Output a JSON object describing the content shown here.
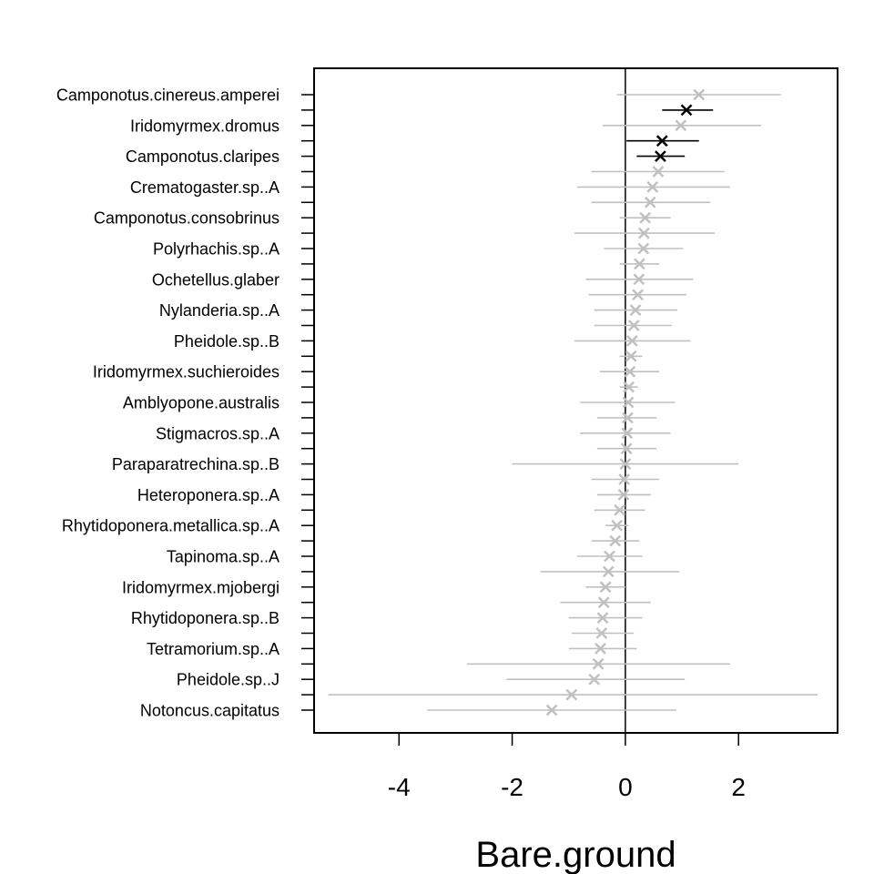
{
  "chart_data": {
    "type": "scatter",
    "subtype": "coefficient-plot-with-intervals",
    "title": "",
    "xlabel": "Bare.ground",
    "ylabel": "",
    "xlim": [
      -5.5,
      3.75
    ],
    "xticks": [
      -4,
      -2,
      0,
      2
    ],
    "zero_line": 0,
    "grid": false,
    "marker": "x",
    "colors": {
      "significant": "#000000",
      "nonsignificant": "#c0c0c0"
    },
    "tick_labels_every": 2,
    "species": [
      {
        "name": "Camponotus.cinereus.amperei",
        "est": 1.3,
        "lo": -0.15,
        "hi": 2.75,
        "sig": false
      },
      {
        "name": "",
        "est": 1.08,
        "lo": 0.65,
        "hi": 1.55,
        "sig": true
      },
      {
        "name": "Iridomyrmex.dromus",
        "est": 0.98,
        "lo": -0.4,
        "hi": 2.4,
        "sig": false
      },
      {
        "name": "",
        "est": 0.65,
        "lo": 0.02,
        "hi": 1.3,
        "sig": true
      },
      {
        "name": "Camponotus.claripes",
        "est": 0.62,
        "lo": 0.2,
        "hi": 1.05,
        "sig": true
      },
      {
        "name": "",
        "est": 0.58,
        "lo": -0.6,
        "hi": 1.75,
        "sig": false
      },
      {
        "name": "Crematogaster.sp..A",
        "est": 0.48,
        "lo": -0.85,
        "hi": 1.85,
        "sig": false
      },
      {
        "name": "",
        "est": 0.44,
        "lo": -0.6,
        "hi": 1.5,
        "sig": false
      },
      {
        "name": "Camponotus.consobrinus",
        "est": 0.35,
        "lo": -0.1,
        "hi": 0.8,
        "sig": false
      },
      {
        "name": "",
        "est": 0.33,
        "lo": -0.9,
        "hi": 1.58,
        "sig": false
      },
      {
        "name": "Polyrhachis.sp..A",
        "est": 0.32,
        "lo": -0.38,
        "hi": 1.02,
        "sig": false
      },
      {
        "name": "",
        "est": 0.25,
        "lo": -0.1,
        "hi": 0.6,
        "sig": false
      },
      {
        "name": "Ochetellus.glaber",
        "est": 0.24,
        "lo": -0.7,
        "hi": 1.2,
        "sig": false
      },
      {
        "name": "",
        "est": 0.22,
        "lo": -0.65,
        "hi": 1.08,
        "sig": false
      },
      {
        "name": "Nylanderia.sp..A",
        "est": 0.18,
        "lo": -0.55,
        "hi": 0.92,
        "sig": false
      },
      {
        "name": "",
        "est": 0.15,
        "lo": -0.55,
        "hi": 0.82,
        "sig": false
      },
      {
        "name": "Pheidole.sp..B",
        "est": 0.12,
        "lo": -0.9,
        "hi": 1.15,
        "sig": false
      },
      {
        "name": "",
        "est": 0.1,
        "lo": -0.1,
        "hi": 0.3,
        "sig": false
      },
      {
        "name": "Iridomyrmex.suchieroides",
        "est": 0.08,
        "lo": -0.45,
        "hi": 0.6,
        "sig": false
      },
      {
        "name": "",
        "est": 0.06,
        "lo": -0.1,
        "hi": 0.22,
        "sig": false
      },
      {
        "name": "Amblyopone.australis",
        "est": 0.05,
        "lo": -0.8,
        "hi": 0.88,
        "sig": false
      },
      {
        "name": "",
        "est": 0.04,
        "lo": -0.5,
        "hi": 0.55,
        "sig": false
      },
      {
        "name": "Stigmacros.sp..A",
        "est": 0.03,
        "lo": -0.8,
        "hi": 0.8,
        "sig": false
      },
      {
        "name": "",
        "est": 0.02,
        "lo": -0.5,
        "hi": 0.55,
        "sig": false
      },
      {
        "name": "Paraparatrechina.sp..B",
        "est": 0.0,
        "lo": -2.0,
        "hi": 2.0,
        "sig": false
      },
      {
        "name": "",
        "est": -0.02,
        "lo": -0.6,
        "hi": 0.6,
        "sig": false
      },
      {
        "name": "Heteroponera.sp..A",
        "est": -0.03,
        "lo": -0.5,
        "hi": 0.45,
        "sig": false
      },
      {
        "name": "",
        "est": -0.1,
        "lo": -0.55,
        "hi": 0.35,
        "sig": false
      },
      {
        "name": "Rhytidoponera.metallica.sp..A",
        "est": -0.15,
        "lo": -0.35,
        "hi": 0.05,
        "sig": false
      },
      {
        "name": "",
        "est": -0.18,
        "lo": -0.6,
        "hi": 0.25,
        "sig": false
      },
      {
        "name": "Tapinoma.sp..A",
        "est": -0.28,
        "lo": -0.85,
        "hi": 0.3,
        "sig": false
      },
      {
        "name": "",
        "est": -0.3,
        "lo": -1.5,
        "hi": 0.95,
        "sig": false
      },
      {
        "name": "Iridomyrmex.mjobergi",
        "est": -0.35,
        "lo": -0.7,
        "hi": 0.0,
        "sig": false
      },
      {
        "name": "",
        "est": -0.38,
        "lo": -1.15,
        "hi": 0.45,
        "sig": false
      },
      {
        "name": "Rhytidoponera.sp..B",
        "est": -0.4,
        "lo": -1.0,
        "hi": 0.3,
        "sig": false
      },
      {
        "name": "",
        "est": -0.42,
        "lo": -0.95,
        "hi": 0.15,
        "sig": false
      },
      {
        "name": "Tetramorium.sp..A",
        "est": -0.44,
        "lo": -1.0,
        "hi": 0.2,
        "sig": false
      },
      {
        "name": "",
        "est": -0.48,
        "lo": -2.8,
        "hi": 1.85,
        "sig": false
      },
      {
        "name": "Pheidole.sp..J",
        "est": -0.55,
        "lo": -2.1,
        "hi": 1.05,
        "sig": false
      },
      {
        "name": "",
        "est": -0.95,
        "lo": -5.25,
        "hi": 3.4,
        "sig": false
      },
      {
        "name": "Notoncus.capitatus",
        "est": -1.3,
        "lo": -3.5,
        "hi": 0.9,
        "sig": false
      }
    ]
  }
}
